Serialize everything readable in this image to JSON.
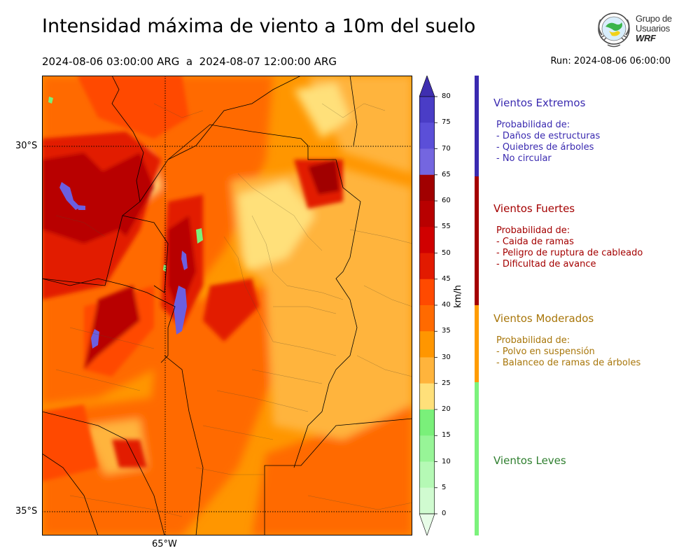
{
  "header": {
    "title": "Intensidad máxima de viento a 10m del suelo",
    "period": "2024-08-06 03:00:00 ARG  a  2024-08-07 12:00:00 ARG",
    "run": "Run: 2024-08-06 06:00:00"
  },
  "logo": {
    "line1": "Grupo de",
    "line2": "Usuarios",
    "line3": "WRF"
  },
  "map_axes": {
    "lat_labels": [
      "30°S",
      "35°S"
    ],
    "lon_labels": [
      "65°W"
    ]
  },
  "colorbar": {
    "unit": "km/h",
    "ticks": [
      "80",
      "75",
      "70",
      "65",
      "60",
      "55",
      "50",
      "45",
      "40",
      "35",
      "30",
      "25",
      "20",
      "15",
      "10",
      "5",
      "0"
    ],
    "colors": [
      "#3f2fb0",
      "#4a3dc6",
      "#5b4fd8",
      "#7466e0",
      "#a10000",
      "#b80000",
      "#d00000",
      "#e21a00",
      "#ff4a00",
      "#ff6a00",
      "#ff9600",
      "#ffb43c",
      "#ffe07a",
      "#7af07a",
      "#97f597",
      "#b5f9b5",
      "#d0fbd0",
      "#e8fde8"
    ]
  },
  "categories": [
    {
      "name": "Vientos Extremos",
      "color": "#3a2ab0",
      "desc": [
        "Probabilidad de:",
        "- Daños de estructuras",
        "- Quiebres de árboles",
        "- No circular"
      ]
    },
    {
      "name": "Vientos Fuertes",
      "color": "#a40000",
      "desc": [
        "Probabilidad de:",
        "- Caida de ramas",
        "- Peligro de ruptura de cableado",
        "- Dificultad de avance"
      ]
    },
    {
      "name": "Vientos Moderados",
      "color": "#a8760a",
      "desc": [
        "Probabilidad de:",
        "- Polvo en suspensión",
        "- Balanceo de ramas de árboles"
      ]
    },
    {
      "name": "Vientos Leves",
      "color": "#2f7f2f",
      "desc": []
    }
  ],
  "category_bar_colors": [
    "#3a2ab0",
    "#a40000",
    "#ff9c00",
    "#7cf27c"
  ]
}
